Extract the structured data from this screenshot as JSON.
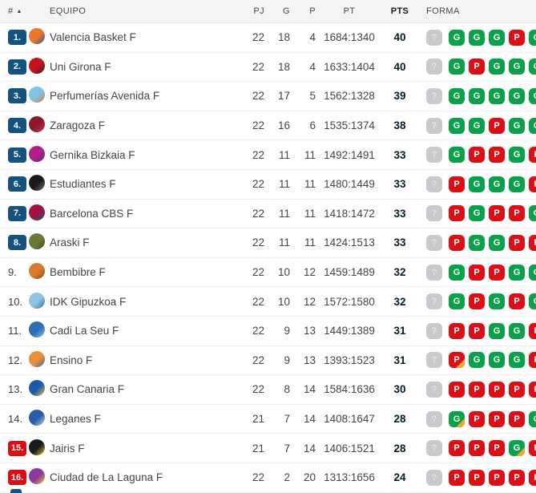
{
  "colors": {
    "promotion_badge": "#16527f",
    "relegation_badge": "#dc0c15",
    "form_win": "#0ba04a",
    "form_loss": "#dc0e16",
    "form_unknown": "#c9cacd",
    "form_overtime_corner": "#f2a52f",
    "header_background": "#f4f4f5"
  },
  "table": {
    "header": {
      "rank": "#",
      "sort": "▲",
      "equipo": "EQUIPO",
      "pj": "PJ",
      "g": "G",
      "p": "P",
      "pt": "PT",
      "pts": "PTS",
      "forma": "FORMA"
    },
    "rows": [
      {
        "pos": "1.",
        "zone": "promotion",
        "team": "Valencia Basket F",
        "logo": "valencia-basket-logo",
        "logo_colors": [
          "#e8762c",
          "#2b5d8c"
        ],
        "pj": "22",
        "g": "18",
        "p": "4",
        "pt": "1684:1340",
        "pts": "40",
        "forma": [
          "?",
          "G",
          "G",
          "G",
          "P",
          "G"
        ]
      },
      {
        "pos": "2.",
        "zone": "promotion",
        "team": "Uni Girona F",
        "logo": "uni-girona-logo",
        "logo_colors": [
          "#c41420",
          "#26262b"
        ],
        "pj": "22",
        "g": "18",
        "p": "4",
        "pt": "1633:1404",
        "pts": "40",
        "forma": [
          "?",
          "G",
          "P",
          "G",
          "G",
          "G"
        ]
      },
      {
        "pos": "3.",
        "zone": "promotion",
        "team": "Perfumerías Avenida F",
        "logo": "perfumerias-avenida-logo",
        "logo_colors": [
          "#7ec3e8",
          "#e8762c"
        ],
        "pj": "22",
        "g": "17",
        "p": "5",
        "pt": "1562:1328",
        "pts": "39",
        "forma": [
          "?",
          "G",
          "G",
          "G",
          "G",
          "G"
        ]
      },
      {
        "pos": "4.",
        "zone": "promotion",
        "team": "Zaragoza F",
        "logo": "zaragoza-logo",
        "logo_colors": [
          "#8c1a2f",
          "#c23b50"
        ],
        "pj": "22",
        "g": "16",
        "p": "6",
        "pt": "1535:1374",
        "pts": "38",
        "forma": [
          "?",
          "G",
          "G",
          "P",
          "G",
          "G*"
        ]
      },
      {
        "pos": "5.",
        "zone": "promotion",
        "team": "Gernika Bizkaia F",
        "logo": "gernika-bizkaia-logo",
        "logo_colors": [
          "#b01e8c",
          "#5a2d82"
        ],
        "pj": "22",
        "g": "11",
        "p": "11",
        "pt": "1492:1491",
        "pts": "33",
        "forma": [
          "?",
          "G",
          "P",
          "P",
          "G",
          "P"
        ]
      },
      {
        "pos": "6.",
        "zone": "promotion",
        "team": "Estudiantes F",
        "logo": "estudiantes-logo",
        "logo_colors": [
          "#1a1a1e",
          "#6a6a72"
        ],
        "pj": "22",
        "g": "11",
        "p": "11",
        "pt": "1480:1449",
        "pts": "33",
        "forma": [
          "?",
          "P",
          "G",
          "G",
          "G",
          "P"
        ]
      },
      {
        "pos": "7.",
        "zone": "promotion",
        "team": "Barcelona CBS F",
        "logo": "barcelona-cbs-logo",
        "logo_colors": [
          "#a5123e",
          "#1a4b8c"
        ],
        "pj": "22",
        "g": "11",
        "p": "11",
        "pt": "1418:1472",
        "pts": "33",
        "forma": [
          "?",
          "P",
          "G",
          "P",
          "P",
          "G"
        ]
      },
      {
        "pos": "8.",
        "zone": "promotion",
        "team": "Araski F",
        "logo": "araski-logo",
        "logo_colors": [
          "#6b7a3a",
          "#3d4a22"
        ],
        "pj": "22",
        "g": "11",
        "p": "11",
        "pt": "1424:1513",
        "pts": "33",
        "forma": [
          "?",
          "P",
          "G",
          "G",
          "P",
          "P*"
        ]
      },
      {
        "pos": "9.",
        "zone": "none",
        "team": "Bembibre F",
        "logo": "bembibre-logo",
        "logo_colors": [
          "#d97a2e",
          "#8a4a1e"
        ],
        "pj": "22",
        "g": "10",
        "p": "12",
        "pt": "1459:1489",
        "pts": "32",
        "forma": [
          "?",
          "G",
          "P",
          "P",
          "G",
          "G"
        ]
      },
      {
        "pos": "10.",
        "zone": "none",
        "team": "IDK Gipuzkoa F",
        "logo": "idk-gipuzkoa-logo",
        "logo_colors": [
          "#8fc3e0",
          "#2a6ea8"
        ],
        "pj": "22",
        "g": "10",
        "p": "12",
        "pt": "1572:1580",
        "pts": "32",
        "forma": [
          "?",
          "G",
          "P",
          "G",
          "P",
          "G"
        ]
      },
      {
        "pos": "11.",
        "zone": "none",
        "team": "Cadi La Seu F",
        "logo": "cadi-la-seu-logo",
        "logo_colors": [
          "#2a6eb8",
          "#8fc3e0"
        ],
        "pj": "22",
        "g": "9",
        "p": "13",
        "pt": "1449:1389",
        "pts": "31",
        "forma": [
          "?",
          "P",
          "P",
          "G",
          "G",
          "P"
        ]
      },
      {
        "pos": "12.",
        "zone": "none",
        "team": "Ensino F",
        "logo": "ensino-logo",
        "logo_colors": [
          "#e8903a",
          "#3a6ea8"
        ],
        "pj": "22",
        "g": "9",
        "p": "13",
        "pt": "1393:1523",
        "pts": "31",
        "forma": [
          "?",
          "P*",
          "G",
          "G",
          "G",
          "P"
        ]
      },
      {
        "pos": "13.",
        "zone": "none",
        "team": "Gran Canaria F",
        "logo": "gran-canaria-logo",
        "logo_colors": [
          "#1a5aa8",
          "#f2c12e"
        ],
        "pj": "22",
        "g": "8",
        "p": "14",
        "pt": "1584:1636",
        "pts": "30",
        "forma": [
          "?",
          "P",
          "P",
          "P",
          "P",
          "P"
        ]
      },
      {
        "pos": "14.",
        "zone": "none",
        "team": "Leganes F",
        "logo": "leganes-logo",
        "logo_colors": [
          "#2a5aa8",
          "#c9d2e8"
        ],
        "pj": "21",
        "g": "7",
        "p": "14",
        "pt": "1408:1647",
        "pts": "28",
        "forma": [
          "?",
          "G*",
          "P",
          "P",
          "P",
          "G"
        ]
      },
      {
        "pos": "15.",
        "zone": "relegation",
        "team": "Jairis F",
        "logo": "jairis-logo",
        "logo_colors": [
          "#1a1a1a",
          "#e8c12e"
        ],
        "pj": "21",
        "g": "7",
        "p": "14",
        "pt": "1406:1521",
        "pts": "28",
        "forma": [
          "?",
          "P",
          "P",
          "P",
          "G*",
          "P"
        ]
      },
      {
        "pos": "16.",
        "zone": "relegation",
        "team": "Ciudad de La Laguna F",
        "logo": "ciudad-la-laguna-logo",
        "logo_colors": [
          "#8a3a9c",
          "#e8c12e"
        ],
        "pj": "22",
        "g": "2",
        "p": "20",
        "pt": "1313:1656",
        "pts": "24",
        "forma": [
          "?",
          "P",
          "P",
          "P",
          "P",
          "P*"
        ]
      }
    ]
  }
}
